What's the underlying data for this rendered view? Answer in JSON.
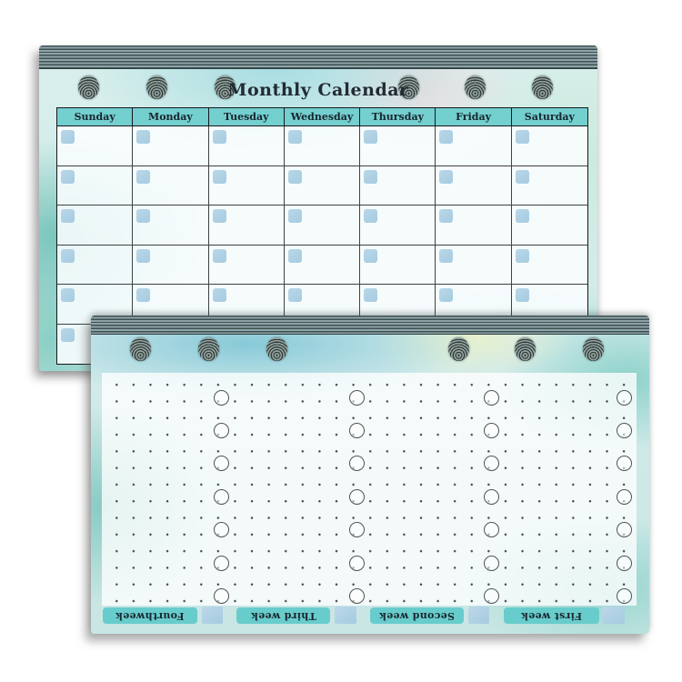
{
  "back_page": {
    "title": "Monthly Calendar",
    "day_headers": [
      "Sunday",
      "Monday",
      "Tuesday",
      "Wednesday",
      "Thursday",
      "Friday",
      "Saturday"
    ]
  },
  "front_page": {
    "week_labels": [
      "Fourthweek",
      "Third week",
      "Second week",
      "First week"
    ]
  },
  "colors": {
    "header_fill": "#74cfcf",
    "label_fill": "#68cccc",
    "checkbox_blue": "#a6cbe1"
  }
}
